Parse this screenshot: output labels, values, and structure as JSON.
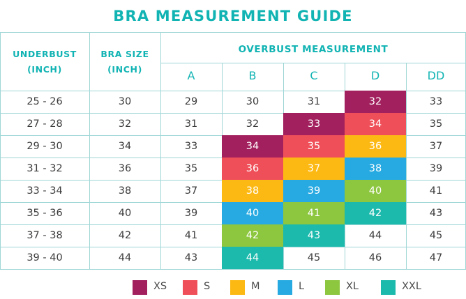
{
  "title": "BRA MEASUREMENT GUIDE",
  "headers": {
    "underbust_line1": "UNDERBUST",
    "underbust_line2": "(INCH)",
    "size_line1": "BRA SIZE",
    "size_line2": "(INCH)",
    "overbust": "OVERBUST MEASUREMENT"
  },
  "cups": [
    "A",
    "B",
    "C",
    "D",
    "DD"
  ],
  "colors": {
    "XS": "#a2205e",
    "S": "#ef4f58",
    "M": "#fdb913",
    "L": "#27aae1",
    "XL": "#8dc63f",
    "XXL": "#1cbaad",
    "line": "#9fd6d6",
    "accent": "#12b3b3"
  },
  "rows": [
    {
      "underbust": "25 - 26",
      "size": "30",
      "values": [
        "29",
        "30",
        "31",
        "32",
        "33"
      ],
      "marks": [
        "",
        "",
        "",
        "XS",
        ""
      ]
    },
    {
      "underbust": "27 - 28",
      "size": "32",
      "values": [
        "31",
        "32",
        "33",
        "34",
        "35"
      ],
      "marks": [
        "",
        "",
        "XS",
        "S",
        ""
      ]
    },
    {
      "underbust": "29 - 30",
      "size": "34",
      "values": [
        "33",
        "34",
        "35",
        "36",
        "37"
      ],
      "marks": [
        "",
        "XS",
        "S",
        "M",
        ""
      ]
    },
    {
      "underbust": "31 - 32",
      "size": "36",
      "values": [
        "35",
        "36",
        "37",
        "38",
        "39"
      ],
      "marks": [
        "",
        "S",
        "M",
        "L",
        ""
      ]
    },
    {
      "underbust": "33 - 34",
      "size": "38",
      "values": [
        "37",
        "38",
        "39",
        "40",
        "41"
      ],
      "marks": [
        "",
        "M",
        "L",
        "XL",
        ""
      ]
    },
    {
      "underbust": "35 - 36",
      "size": "40",
      "values": [
        "39",
        "40",
        "41",
        "42",
        "43"
      ],
      "marks": [
        "",
        "L",
        "XL",
        "XXL",
        ""
      ]
    },
    {
      "underbust": "37 - 38",
      "size": "42",
      "values": [
        "41",
        "42",
        "43",
        "44",
        "45"
      ],
      "marks": [
        "",
        "XL",
        "XXL",
        "",
        ""
      ]
    },
    {
      "underbust": "39 - 40",
      "size": "44",
      "values": [
        "43",
        "44",
        "45",
        "46",
        "47"
      ],
      "marks": [
        "",
        "XXL",
        "",
        "",
        ""
      ]
    }
  ],
  "legend": [
    {
      "key": "XS",
      "label": "XS"
    },
    {
      "key": "S",
      "label": "S"
    },
    {
      "key": "M",
      "label": "M"
    },
    {
      "key": "L",
      "label": "L"
    },
    {
      "key": "XL",
      "label": "XL"
    },
    {
      "key": "XXL",
      "label": "XXL"
    }
  ]
}
